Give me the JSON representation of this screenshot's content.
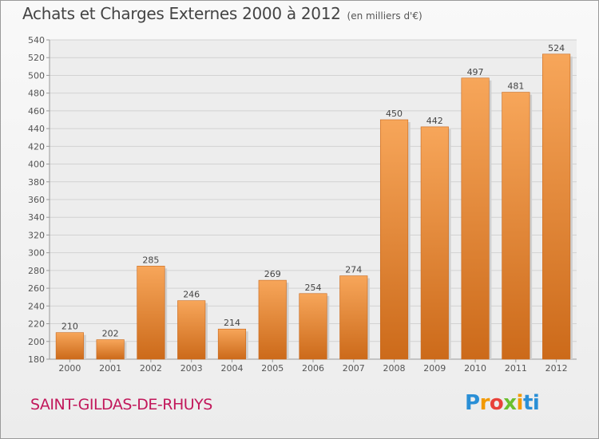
{
  "chart_data": {
    "type": "bar",
    "title": "Achats et Charges Externes 2000 à 2012",
    "subtitle": "(en milliers d'€)",
    "categories": [
      "2000",
      "2001",
      "2002",
      "2003",
      "2004",
      "2005",
      "2006",
      "2007",
      "2008",
      "2009",
      "2010",
      "2011",
      "2012"
    ],
    "values": [
      210,
      202,
      285,
      246,
      214,
      269,
      254,
      274,
      450,
      442,
      497,
      481,
      524
    ],
    "ylim": [
      180,
      540
    ],
    "yticks": [
      180,
      200,
      220,
      240,
      260,
      280,
      300,
      320,
      340,
      360,
      380,
      400,
      420,
      440,
      460,
      480,
      500,
      520,
      540
    ],
    "grid": true,
    "xlabel": "",
    "ylabel": "",
    "bar_color_top": "#f7a65a",
    "bar_color_bottom": "#cc6a1a"
  },
  "footer": {
    "town": "SAINT-GILDAS-DE-RHUYS",
    "logo_parts": [
      "P",
      "r",
      "o",
      "x",
      "i",
      "ti"
    ]
  }
}
